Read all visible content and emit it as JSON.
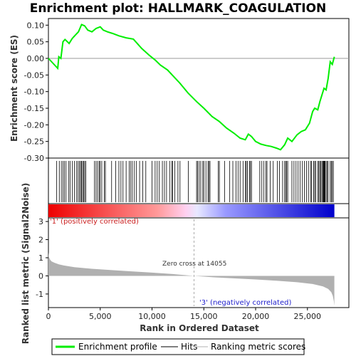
{
  "chart_data": {
    "type": "line",
    "title": "Enrichment plot: HALLMARK_COAGULATION",
    "top_panel": {
      "ylabel": "Enrichment score (ES)",
      "ylim": [
        -0.3,
        0.12
      ],
      "yticks": [
        "-0.30",
        "-0.25",
        "-0.20",
        "-0.15",
        "-0.10",
        "-0.05",
        "0.00",
        "0.05",
        "0.10"
      ],
      "ytick_values": [
        -0.3,
        -0.25,
        -0.2,
        -0.15,
        -0.1,
        -0.05,
        0.0,
        0.05,
        0.1
      ],
      "color": "#00ee00",
      "series": [
        {
          "name": "Enrichment profile",
          "x": [
            0,
            900,
            1000,
            1200,
            1400,
            1600,
            2000,
            2300,
            2600,
            2900,
            3200,
            3500,
            3800,
            4200,
            4600,
            5000,
            5300,
            5700,
            6200,
            6800,
            7500,
            8200,
            9000,
            9700,
            10300,
            10800,
            11500,
            12100,
            12700,
            13500,
            14300,
            15000,
            15800,
            16500,
            17200,
            17900,
            18500,
            19000,
            19300,
            19600,
            20000,
            20500,
            21000,
            21500,
            22000,
            22400,
            22800,
            23100,
            23500,
            24000,
            24400,
            24800,
            25200,
            25500,
            25700,
            26000,
            26200,
            26400,
            26600,
            26800,
            27000,
            27200,
            27400,
            27600
          ],
          "y": [
            0.0,
            -0.03,
            0.005,
            0.0,
            0.05,
            0.057,
            0.045,
            0.06,
            0.07,
            0.08,
            0.102,
            0.098,
            0.085,
            0.08,
            0.09,
            0.095,
            0.085,
            0.08,
            0.075,
            0.068,
            0.062,
            0.058,
            0.03,
            0.01,
            -0.005,
            -0.02,
            -0.035,
            -0.055,
            -0.075,
            -0.105,
            -0.13,
            -0.15,
            -0.175,
            -0.19,
            -0.21,
            -0.225,
            -0.24,
            -0.245,
            -0.228,
            -0.235,
            -0.25,
            -0.258,
            -0.262,
            -0.265,
            -0.27,
            -0.275,
            -0.26,
            -0.24,
            -0.25,
            -0.23,
            -0.22,
            -0.215,
            -0.195,
            -0.16,
            -0.15,
            -0.155,
            -0.13,
            -0.11,
            -0.09,
            -0.095,
            -0.06,
            -0.01,
            -0.018,
            0.005
          ]
        }
      ],
      "hits": [
        800,
        1050,
        1250,
        1400,
        1550,
        1700,
        1950,
        2100,
        2300,
        2500,
        2700,
        2850,
        3000,
        3100,
        3200,
        3300,
        3400,
        3500,
        3600,
        4450,
        4600,
        4750,
        4900,
        5000,
        5150,
        5400,
        5500,
        6100,
        6500,
        6800,
        7000,
        7200,
        7500,
        7800,
        7950,
        8100,
        8300,
        8500,
        8800,
        9100,
        9400,
        10000,
        10300,
        10500,
        10700,
        11000,
        11200,
        11400,
        11700,
        11900,
        12000,
        12200,
        12500,
        12700,
        13500,
        14300,
        14400,
        14550,
        14700,
        14900,
        15000,
        15200,
        15400,
        15500,
        15600,
        16400,
        16500,
        17000,
        17500,
        17800,
        18100,
        18300,
        18500,
        18800,
        19000,
        19100,
        19200,
        19400,
        19500,
        19600,
        20400,
        20600,
        20800,
        21000,
        21100,
        21400,
        21700,
        22100,
        22300,
        22600,
        22800,
        22900,
        23000,
        23100,
        23500,
        23700,
        23900,
        24100,
        24300,
        24500,
        24700,
        24900,
        25100,
        25300,
        25400,
        25600,
        25700,
        25800,
        26000,
        26100,
        26200,
        26300,
        26400,
        26500,
        26550,
        26600,
        26650,
        26700,
        26800,
        26900,
        27000,
        27200,
        27300,
        27400,
        27500
      ]
    },
    "bottom_panel": {
      "ylabel": "Ranked list metric (Signal2Noise)",
      "ylim": [
        -1.75,
        3.2
      ],
      "yticks": [
        "-1",
        "0",
        "1",
        "2",
        "3"
      ],
      "ytick_values": [
        -1,
        0,
        1,
        2,
        3
      ],
      "fill_color": "#b0b0b0",
      "series": [
        {
          "name": "Ranking metric scores",
          "x": [
            0,
            50,
            150,
            300,
            600,
            1000,
            1500,
            2500,
            4000,
            6000,
            8000,
            10000,
            12000,
            14055,
            16000,
            18000,
            20000,
            22000,
            24000,
            25500,
            26500,
            27000,
            27300,
            27450,
            27550,
            27600
          ],
          "y": [
            1.3,
            1.05,
            0.9,
            0.8,
            0.72,
            0.64,
            0.57,
            0.48,
            0.4,
            0.32,
            0.25,
            0.18,
            0.1,
            0.0,
            -0.08,
            -0.14,
            -0.2,
            -0.27,
            -0.35,
            -0.45,
            -0.58,
            -0.72,
            -0.9,
            -1.1,
            -1.4,
            -1.65
          ]
        }
      ],
      "zero_cross_label": "Zero cross at 14055",
      "zero_cross_x": 14055,
      "pos_label": "'1' (positively correlated)",
      "neg_label": "'3' (negatively correlated)"
    },
    "xlabel": "Rank in Ordered Dataset",
    "xlim": [
      0,
      29000
    ],
    "xticks": [
      "0",
      "5,000",
      "10,000",
      "15,000",
      "20,000",
      "25,000"
    ],
    "xtick_values": [
      0,
      5000,
      10000,
      15000,
      20000,
      25000
    ],
    "rank_bar_max": 27600,
    "legend": {
      "placement": "bottom",
      "items": [
        {
          "label": "Enrichment profile",
          "color": "#00ee00"
        },
        {
          "label": "Hits",
          "color": "#000000"
        },
        {
          "label": "Ranking metric scores",
          "color": "#b0b0b0"
        }
      ]
    }
  }
}
